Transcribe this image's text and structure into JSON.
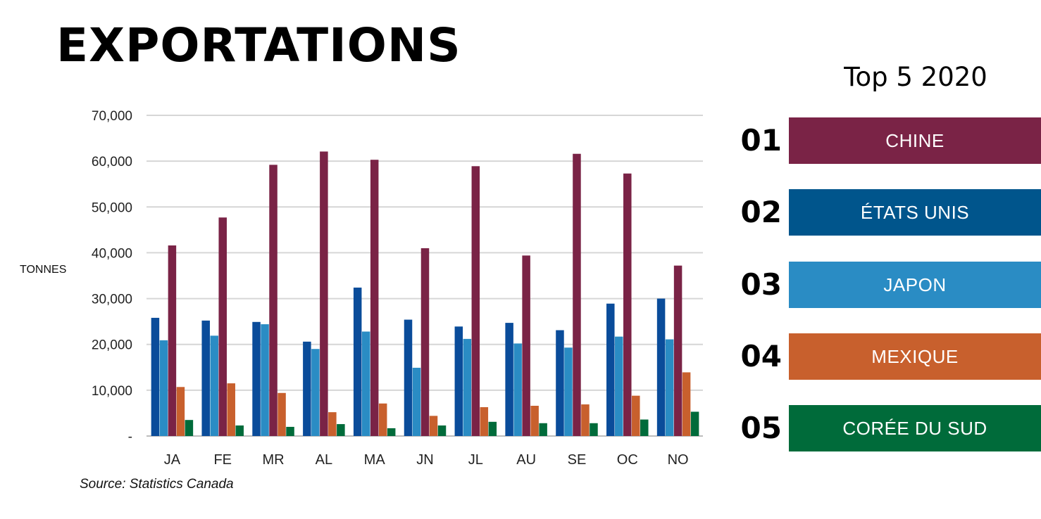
{
  "title": "EXPORTATIONS",
  "source": "Source: Statistics Canada",
  "top5": {
    "title": "Top 5 2020",
    "items": [
      {
        "rank": "01",
        "name": "CHINE",
        "color": "#7a2346"
      },
      {
        "rank": "02",
        "name": "ÉTATS UNIS",
        "color": "#00558c"
      },
      {
        "rank": "03",
        "name": "JAPON",
        "color": "#2a8cc4"
      },
      {
        "rank": "04",
        "name": "MEXIQUE",
        "color": "#c8602d"
      },
      {
        "rank": "05",
        "name": "CORÉE DU SUD",
        "color": "#006b3a"
      }
    ]
  },
  "chart_data": {
    "type": "bar",
    "ylabel": "TONNES",
    "ylim": [
      0,
      70000
    ],
    "yticks": [
      0,
      10000,
      20000,
      30000,
      40000,
      50000,
      60000,
      70000
    ],
    "ytick_labels": [
      "-",
      "10,000",
      "20,000",
      "30,000",
      "40,000",
      "50,000",
      "60,000",
      "70,000"
    ],
    "grid": true,
    "categories": [
      "JA",
      "FE",
      "MR",
      "AL",
      "MA",
      "JN",
      "JL",
      "AU",
      "SE",
      "OC",
      "NO"
    ],
    "series": [
      {
        "color": "#0a4c9a",
        "values": [
          25800,
          25200,
          24900,
          20600,
          32400,
          25400,
          23900,
          24700,
          23100,
          28900,
          30000
        ]
      },
      {
        "color": "#2a8cc4",
        "values": [
          20900,
          21900,
          24400,
          19000,
          22800,
          14900,
          21200,
          20200,
          19300,
          21700,
          21100
        ]
      },
      {
        "color": "#7a2346",
        "values": [
          41600,
          47700,
          59200,
          62100,
          60300,
          41000,
          58900,
          39400,
          61600,
          57300,
          37200
        ]
      },
      {
        "color": "#c8602d",
        "values": [
          10700,
          11500,
          9400,
          5200,
          7100,
          4400,
          6300,
          6600,
          6900,
          8800,
          13900
        ]
      },
      {
        "color": "#006b3a",
        "values": [
          3500,
          2300,
          2000,
          2600,
          1700,
          2300,
          3100,
          2800,
          2800,
          3600,
          5300
        ]
      }
    ]
  }
}
